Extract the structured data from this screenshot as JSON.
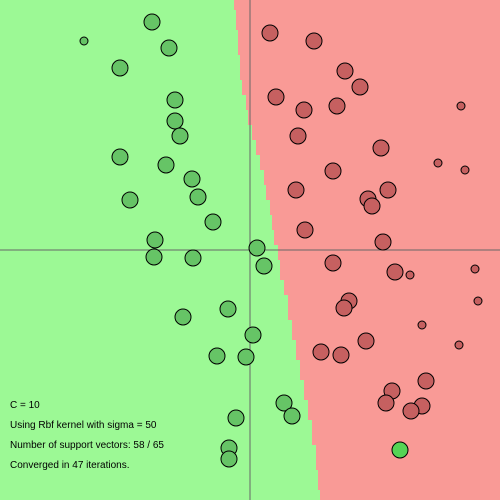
{
  "colors": {
    "region_positive": "#9cf995",
    "region_negative": "#f99a96",
    "point_positive": "#66c466",
    "point_negative": "#c66060",
    "highlight_point": "#55d455",
    "axis": "#666666",
    "point_outline": "#000000"
  },
  "info": {
    "c_text": "C = 10",
    "kernel_text": "Using Rbf kernel with sigma = 50",
    "support_vectors_text": "Number of support vectors: 58 / 65",
    "iterations_text": "Converged in 47 iterations."
  }
}
